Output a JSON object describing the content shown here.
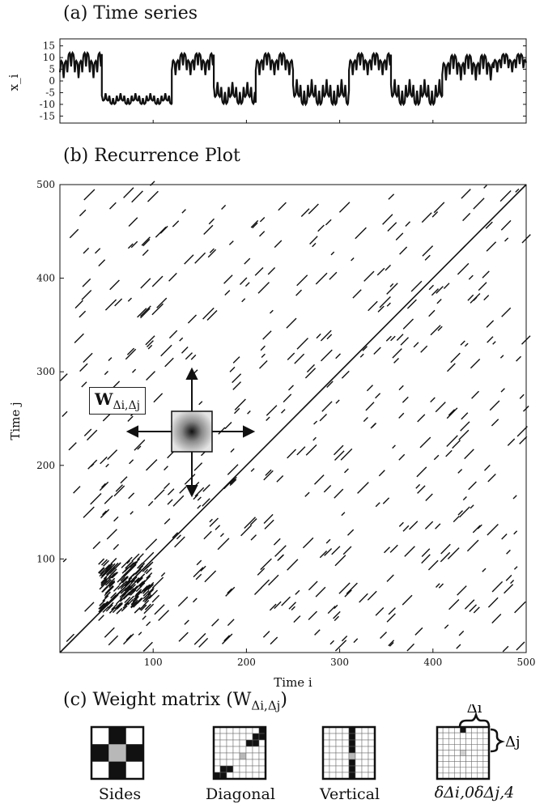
{
  "panel_a": {
    "title": "(a) Time series",
    "ylabel": "x_i",
    "yticks": [
      15,
      10,
      5,
      0,
      -5,
      -10,
      -15
    ]
  },
  "panel_b": {
    "title": "(b) Recurrence Plot",
    "xlabel": "Time i",
    "ylabel": "Time j",
    "xticks": [
      100,
      200,
      300,
      400,
      500
    ],
    "yticks": [
      100,
      200,
      300,
      400,
      500
    ],
    "window_label": "W",
    "window_label_sub": "Δi,Δj"
  },
  "panel_c": {
    "title": "(c) Weight matrix (W",
    "title_sub": "Δi,Δj",
    "title_end": ")",
    "delta_i": "Δi",
    "delta_j": "Δj",
    "captions": [
      "Sides",
      "Diagonal",
      "Vertical",
      "δΔi,0δΔj,4"
    ]
  },
  "chart_data": [
    {
      "type": "line",
      "title": "(a) Time series",
      "xlabel": "",
      "ylabel": "x_i",
      "xlim": [
        0,
        500
      ],
      "ylim": [
        -18,
        18
      ],
      "series": [
        {
          "description": "chaotic oscillation, lobe-switching",
          "segments": [
            {
              "x_start": 0,
              "x_end": 45,
              "center": 10,
              "amp": 7
            },
            {
              "x_start": 45,
              "x_end": 120,
              "center": -9,
              "amp": 3
            },
            {
              "x_start": 120,
              "x_end": 165,
              "center": 10,
              "amp": 6
            },
            {
              "x_start": 165,
              "x_end": 210,
              "center": -8,
              "amp": 6
            },
            {
              "x_start": 210,
              "x_end": 250,
              "center": 10,
              "amp": 6
            },
            {
              "x_start": 250,
              "x_end": 310,
              "center": -8,
              "amp": 7
            },
            {
              "x_start": 310,
              "x_end": 355,
              "center": 10,
              "amp": 6
            },
            {
              "x_start": 355,
              "x_end": 410,
              "center": -8,
              "amp": 7
            },
            {
              "x_start": 410,
              "x_end": 465,
              "center": 9,
              "amp": 7
            },
            {
              "x_start": 465,
              "x_end": 500,
              "center": 10,
              "amp": 5
            }
          ]
        }
      ]
    },
    {
      "type": "heatmap",
      "title": "(b) Recurrence Plot",
      "xlabel": "Time i",
      "ylabel": "Time j",
      "xlim": [
        0,
        500
      ],
      "ylim": [
        0,
        500
      ],
      "grid": false,
      "window_center": [
        140,
        240
      ]
    }
  ]
}
